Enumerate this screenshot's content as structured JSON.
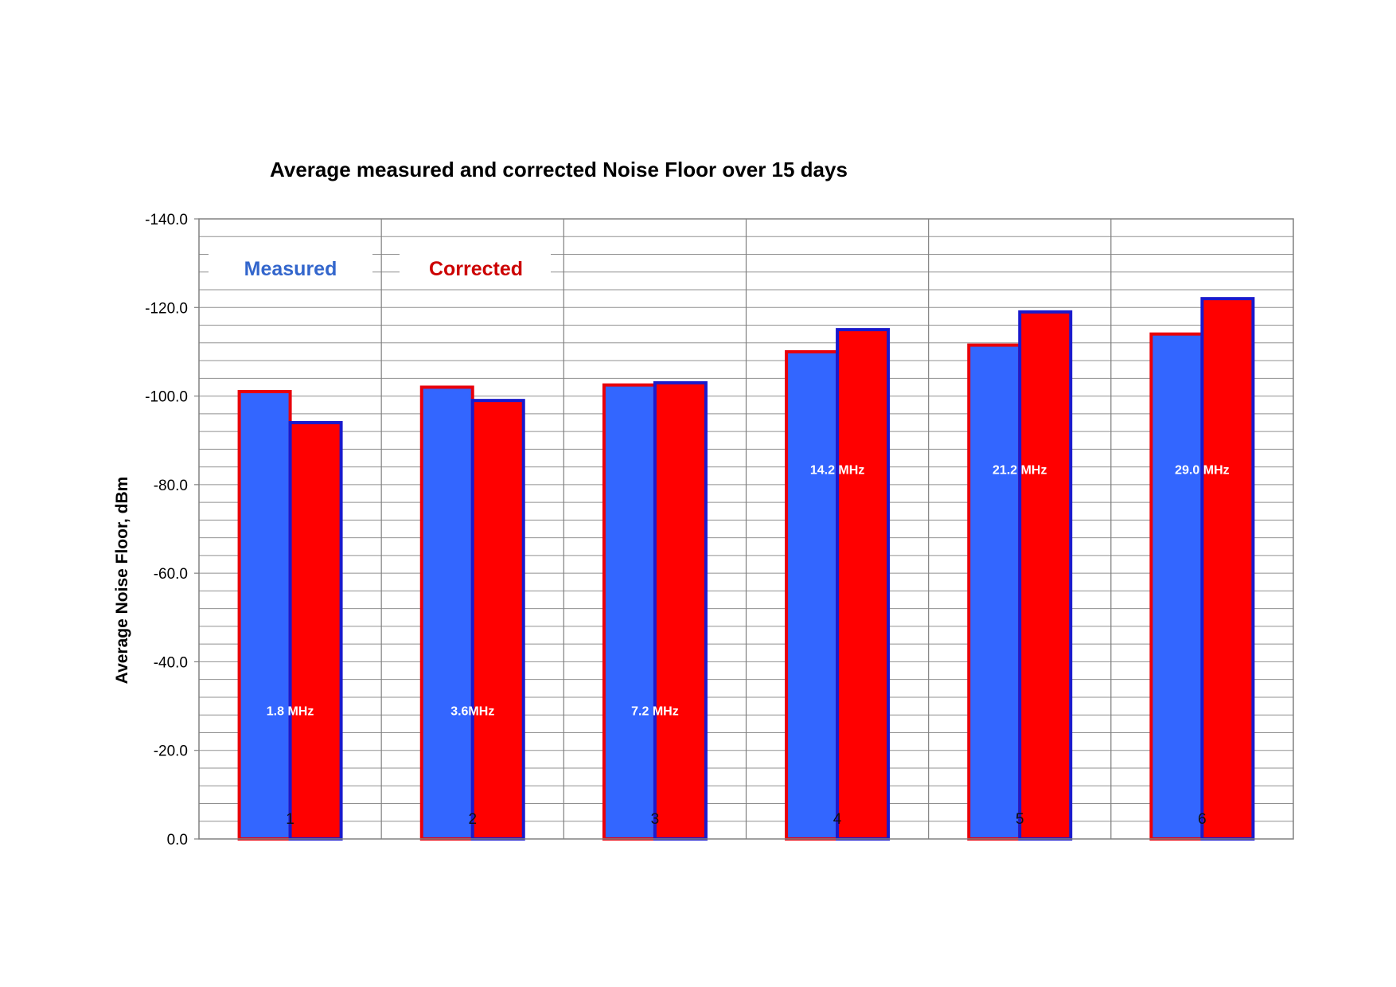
{
  "chart_data": {
    "type": "bar",
    "title": "Average measured and corrected Noise Floor over 15 days",
    "xlabel": "",
    "ylabel": "Average Noise Floor, dBm",
    "categories": [
      "1",
      "2",
      "3",
      "4",
      "5",
      "6"
    ],
    "series": [
      {
        "name": "Measured",
        "values": [
          -101.0,
          -102.0,
          -102.5,
          -110.0,
          -111.5,
          -114.0
        ],
        "fill": "#3366ff",
        "outline": "#e8000b"
      },
      {
        "name": "Corrected",
        "values": [
          -94.0,
          -99.0,
          -103.0,
          -115.0,
          -119.0,
          -122.0
        ],
        "fill": "#ff0000",
        "outline": "#1a1acc"
      }
    ],
    "y_axis_reversed": true,
    "ylim": [
      0,
      -140
    ],
    "ytick_labels": [
      "0.0",
      "-20.0",
      "-40.0",
      "-60.0",
      "-80.0",
      "-100.0",
      "-120.0",
      "-140.0"
    ],
    "grid": true,
    "legend_placement": "top-left",
    "annotations": [
      {
        "category": "1",
        "text": "1.8 MHz",
        "value": -29
      },
      {
        "category": "2",
        "text": "3.6MHz",
        "value": -29
      },
      {
        "category": "3",
        "text": "7.2 MHz",
        "value": -29
      },
      {
        "category": "4",
        "text": "14.2 MHz",
        "value": -83.5
      },
      {
        "category": "5",
        "text": "21.2 MHz",
        "value": -83.5
      },
      {
        "category": "6",
        "text": "29.0 MHz",
        "value": -83.5
      }
    ]
  },
  "legend": {
    "measured_label": "Measured",
    "measured_color": "#3366cc",
    "corrected_label": "Corrected",
    "corrected_color": "#cc0000"
  }
}
